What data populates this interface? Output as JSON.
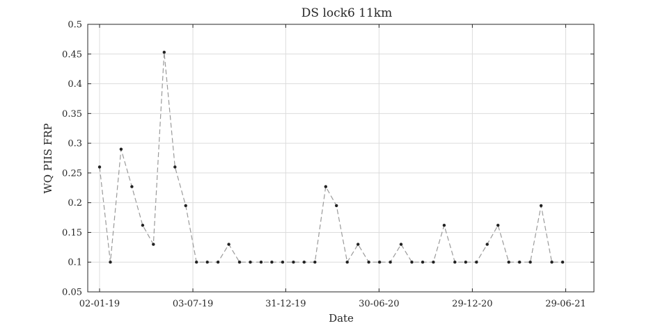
{
  "chart_data": {
    "type": "line",
    "title": "DS lock6 11km",
    "xlabel": "Date",
    "ylabel": "WQ PIIS FRP",
    "ylim": [
      0.05,
      0.5
    ],
    "yticks": [
      "0.05",
      "0.1",
      "0.15",
      "0.2",
      "0.25",
      "0.3",
      "0.35",
      "0.4",
      "0.45",
      "0.5"
    ],
    "xticks": [
      "02-01-19",
      "03-07-19",
      "31-12-19",
      "30-06-20",
      "29-12-20",
      "29-06-21"
    ],
    "grid": true,
    "line_style": "dashed",
    "colors": {
      "line": "#9a9a9a",
      "marker": "#222222",
      "grid": "#dcdcdc",
      "axis": "#262626"
    },
    "series": [
      {
        "x": [
          "2019-01-02",
          "2019-01-23",
          "2019-02-13",
          "2019-03-06",
          "2019-03-27",
          "2019-04-17",
          "2019-05-08",
          "2019-05-29",
          "2019-06-19",
          "2019-07-10",
          "2019-07-31",
          "2019-08-21",
          "2019-09-11",
          "2019-10-02",
          "2019-10-23",
          "2019-11-13",
          "2019-12-04",
          "2019-12-25",
          "2020-01-15",
          "2020-02-05",
          "2020-02-26",
          "2020-03-18",
          "2020-04-08",
          "2020-04-29",
          "2020-05-20",
          "2020-06-10",
          "2020-07-01",
          "2020-07-22",
          "2020-08-12",
          "2020-09-02",
          "2020-09-23",
          "2020-10-14",
          "2020-11-04",
          "2020-11-25",
          "2020-12-16",
          "2021-01-06",
          "2021-01-27",
          "2021-02-17",
          "2021-03-10",
          "2021-03-31",
          "2021-04-21",
          "2021-05-12",
          "2021-06-02",
          "2021-06-23"
        ],
        "values": [
          0.26,
          0.1,
          0.29,
          0.227,
          0.162,
          0.13,
          0.453,
          0.26,
          0.195,
          0.1,
          0.1,
          0.1,
          0.13,
          0.1,
          0.1,
          0.1,
          0.1,
          0.1,
          0.1,
          0.1,
          0.1,
          0.227,
          0.195,
          0.1,
          0.13,
          0.1,
          0.1,
          0.1,
          0.13,
          0.1,
          0.1,
          0.1,
          0.162,
          0.1,
          0.1,
          0.1,
          0.13,
          0.162,
          0.1,
          0.1,
          0.1,
          0.195,
          0.1,
          0.1
        ]
      }
    ]
  }
}
